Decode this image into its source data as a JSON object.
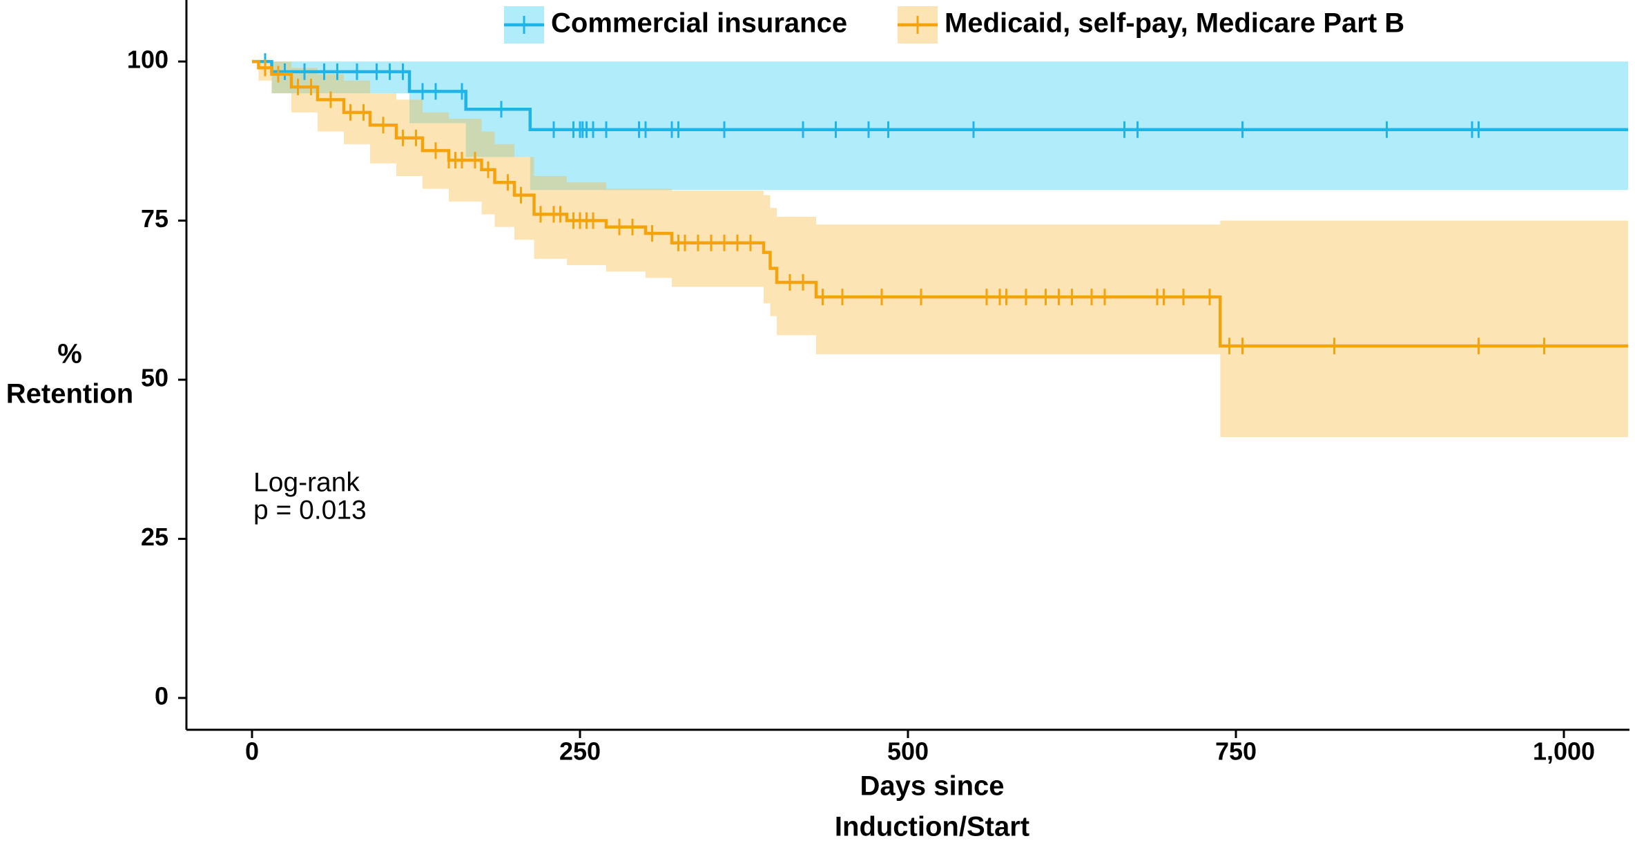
{
  "chart_data": {
    "type": "step",
    "xlabel": [
      "Days since",
      "Induction/Start"
    ],
    "ylabel": [
      "%",
      "Retention"
    ],
    "annotation": [
      "Log-rank",
      "p = 0.013"
    ],
    "xlim": [
      -50,
      1050
    ],
    "ylim": [
      -5,
      105
    ],
    "xticks": [
      0,
      250,
      500,
      750,
      {
        "value": 1000,
        "label": "1,000"
      }
    ],
    "yticks": [
      0,
      25,
      50,
      75,
      100
    ],
    "legend": "top",
    "series": [
      {
        "name": "Commercial insurance",
        "color": "#1eb4e8",
        "band_color": "#33ccf5",
        "x": [
          0,
          15,
          120,
          163,
          212,
          1049
        ],
        "values": [
          100,
          98.4,
          95.3,
          92.5,
          89.3,
          89.3
        ],
        "lower": [
          100,
          95,
          90.3,
          85,
          79.8,
          79.8
        ],
        "upper": [
          100,
          100,
          100,
          100,
          100,
          100
        ],
        "censor": [
          10,
          25,
          40,
          55,
          65,
          80,
          95,
          105,
          115,
          130,
          140,
          160,
          190,
          230,
          245,
          250,
          252,
          255,
          260,
          270,
          295,
          300,
          320,
          325,
          360,
          420,
          445,
          470,
          485,
          550,
          665,
          675,
          755,
          865,
          930,
          935
        ]
      },
      {
        "name": "Medicaid, self-pay, Medicare Part B",
        "color": "#f5a30c",
        "band_color": "#f9b93c",
        "x": [
          0,
          5,
          15,
          30,
          50,
          70,
          90,
          110,
          130,
          150,
          175,
          185,
          200,
          215,
          240,
          270,
          300,
          320,
          390,
          395,
          400,
          430,
          738,
          1049
        ],
        "values": [
          100,
          99,
          98,
          96,
          94,
          92,
          90,
          88,
          86,
          84.5,
          83,
          81,
          79,
          76,
          75,
          74,
          73,
          71.5,
          70,
          67.5,
          65.3,
          63,
          55.3,
          55.3
        ],
        "lower": [
          100,
          97,
          95,
          92,
          89,
          87,
          84,
          82,
          80,
          78,
          76,
          74,
          72,
          69,
          68,
          67,
          66,
          64.6,
          62,
          60,
          57,
          54,
          41,
          41
        ],
        "upper": [
          100,
          100,
          100,
          99,
          98,
          97,
          95,
          94,
          92,
          91,
          89,
          87,
          85,
          82,
          81,
          80,
          80,
          79.7,
          79,
          77,
          75.6,
          74.4,
          75,
          75
        ],
        "censor": [
          10,
          20,
          35,
          45,
          60,
          75,
          85,
          100,
          115,
          125,
          140,
          150,
          155,
          160,
          170,
          180,
          195,
          205,
          220,
          230,
          235,
          245,
          250,
          255,
          260,
          280,
          290,
          305,
          325,
          330,
          340,
          350,
          360,
          370,
          380,
          410,
          420,
          435,
          450,
          480,
          510,
          560,
          570,
          575,
          590,
          605,
          615,
          625,
          640,
          650,
          690,
          695,
          710,
          730,
          745,
          755,
          825,
          935,
          985
        ]
      }
    ]
  }
}
